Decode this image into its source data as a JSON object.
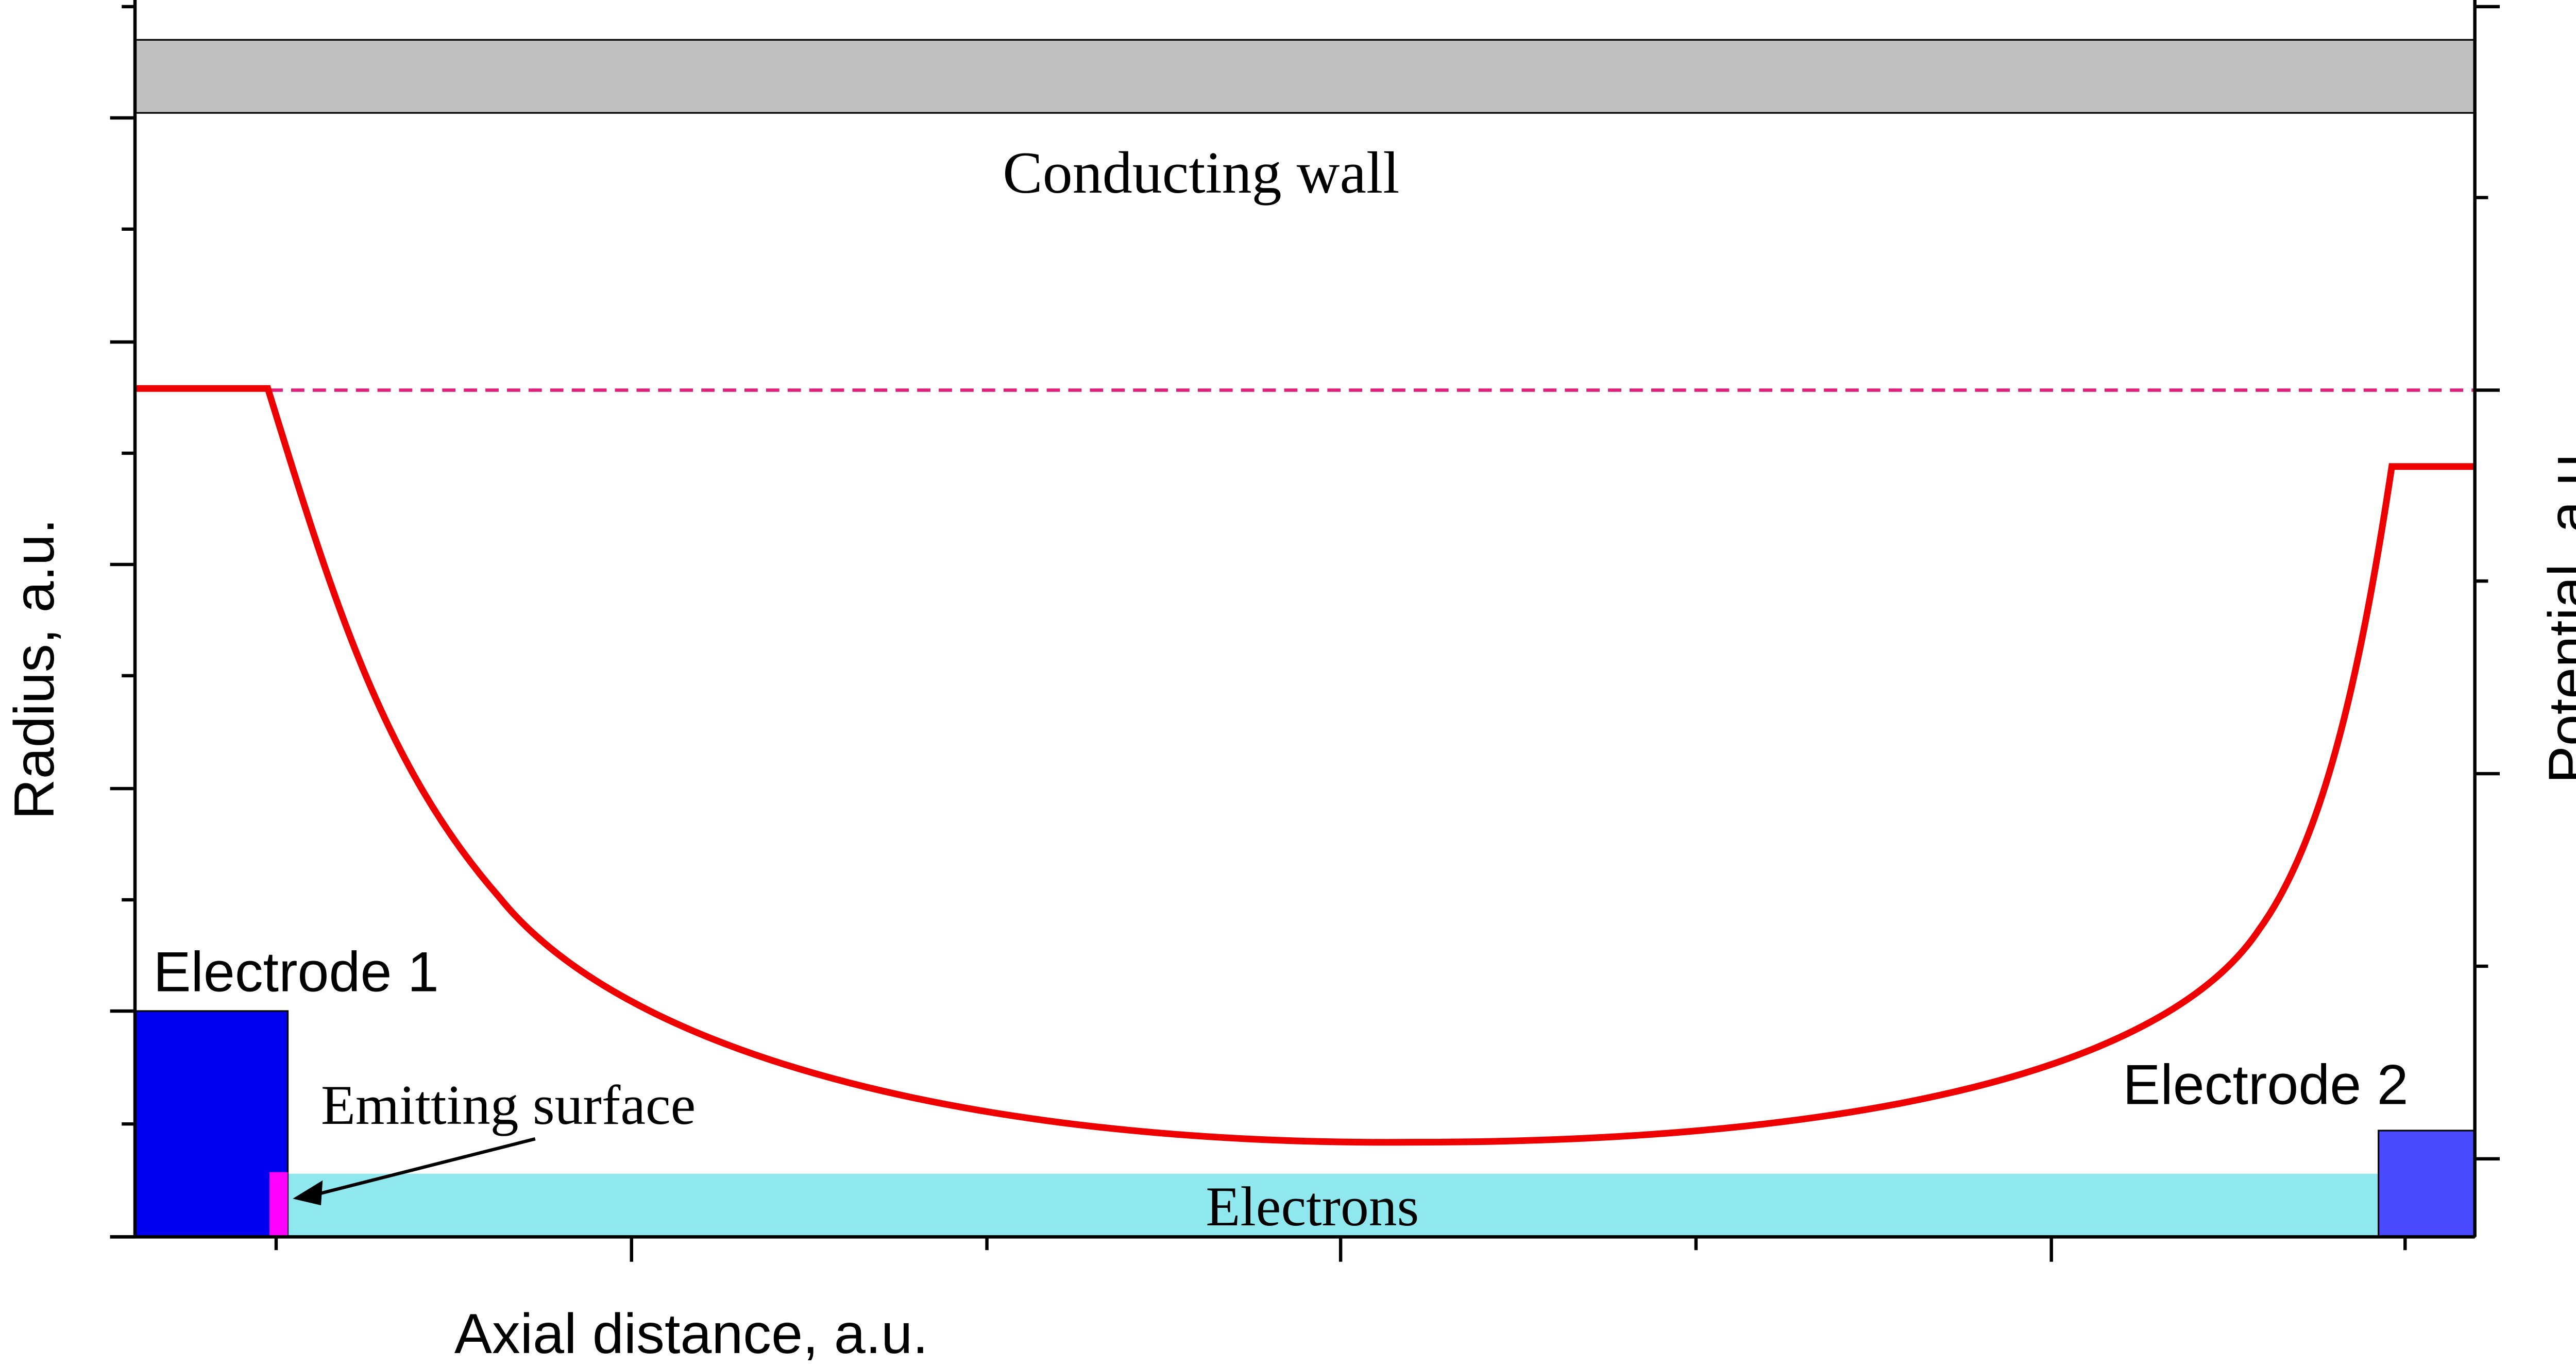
{
  "labels": {
    "conducting_wall": "Conducting wall",
    "electrode_1": "Electrode 1",
    "electrode_2": "Electrode 2",
    "emitting_surface": "Emitting surface",
    "electrons": "Electrons",
    "x_axis": "Axial distance, a.u.",
    "y_axis_left": "Radius, a.u.",
    "y_axis_right": "Potential, a.u."
  },
  "colors": {
    "wall_fill": "#c0c0c0",
    "electrode_1": "#0000ee",
    "electrode_2": "#4a4aff",
    "emitting_surface": "#ff00ff",
    "electrons": "#8ee8ee",
    "potential_curve": "#ee0000",
    "reference_dashed_line": "#e0207a",
    "axis": "#000000"
  }
}
